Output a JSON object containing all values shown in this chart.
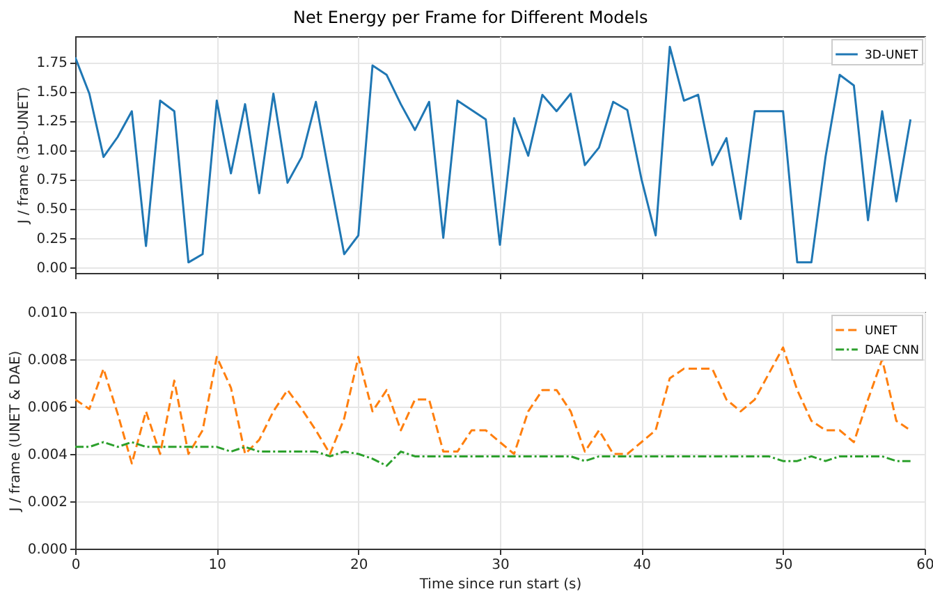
{
  "chart_data": [
    {
      "type": "line",
      "title": "Net Energy per Frame for Different Models",
      "ylabel": "J / frame  (3D-UNET)",
      "x": [
        0,
        1,
        2,
        3,
        4,
        5,
        6,
        7,
        8,
        9,
        10,
        11,
        12,
        13,
        14,
        15,
        16,
        17,
        18,
        19,
        20,
        21,
        22,
        23,
        24,
        25,
        26,
        27,
        28,
        29,
        30,
        31,
        32,
        33,
        34,
        35,
        36,
        37,
        38,
        39,
        40,
        41,
        42,
        43,
        44,
        45,
        46,
        47,
        48,
        49,
        50,
        51,
        52,
        53,
        54,
        55,
        56,
        57,
        58,
        59
      ],
      "series": [
        {
          "name": "3D-UNET",
          "color": "#1f77b4",
          "line_style": "solid",
          "values": [
            1.79,
            1.48,
            0.94,
            1.11,
            1.33,
            0.18,
            1.42,
            1.33,
            0.04,
            0.11,
            1.42,
            0.8,
            1.39,
            0.63,
            1.48,
            0.72,
            0.94,
            1.41,
            0.75,
            0.11,
            0.27,
            1.72,
            1.64,
            1.39,
            1.17,
            1.41,
            0.25,
            1.42,
            1.34,
            1.26,
            0.19,
            1.27,
            0.95,
            1.47,
            1.33,
            1.48,
            0.87,
            1.02,
            1.41,
            1.34,
            0.75,
            0.27,
            1.88,
            1.42,
            1.47,
            0.87,
            1.1,
            0.41,
            1.33,
            1.33,
            1.33,
            0.04,
            0.04,
            0.94,
            1.64,
            1.55,
            0.4,
            1.33,
            0.56,
            1.26
          ]
        }
      ],
      "xlim": [
        0,
        60
      ],
      "xticks": [
        0,
        10,
        20,
        30,
        40,
        50,
        60
      ],
      "ylim": [
        -0.05,
        1.97
      ],
      "yticks": [
        {
          "value": 0,
          "label": "0.00"
        },
        {
          "value": 0.25,
          "label": "0.25"
        },
        {
          "value": 0.5,
          "label": "0.50"
        },
        {
          "value": 0.75,
          "label": "0.75"
        },
        {
          "value": 1,
          "label": "1.00"
        },
        {
          "value": 1.25,
          "label": "1.25"
        },
        {
          "value": 1.5,
          "label": "1.50"
        },
        {
          "value": 1.75,
          "label": "1.75"
        }
      ],
      "grid": true,
      "legend": "top right",
      "tick_labels": "y"
    },
    {
      "type": "line",
      "xlabel": "Time since run start (s)",
      "ylabel": "J / frame  (UNET & DAE)",
      "x": [
        0,
        1,
        2,
        3,
        4,
        5,
        6,
        7,
        8,
        9,
        10,
        11,
        12,
        13,
        14,
        15,
        16,
        17,
        18,
        19,
        20,
        21,
        22,
        23,
        24,
        25,
        26,
        27,
        28,
        29,
        30,
        31,
        32,
        33,
        34,
        35,
        36,
        37,
        38,
        39,
        40,
        41,
        42,
        43,
        44,
        45,
        46,
        47,
        48,
        49,
        50,
        51,
        52,
        53,
        54,
        55,
        56,
        57,
        58,
        59
      ],
      "series": [
        {
          "name": "UNET",
          "color": "#ff7f0e",
          "line_style": "dashed",
          "values": [
            0.0063,
            0.0059,
            0.0076,
            0.0057,
            0.0036,
            0.0058,
            0.004,
            0.0071,
            0.004,
            0.005,
            0.0081,
            0.0068,
            0.004,
            0.0046,
            0.0058,
            0.0067,
            0.0059,
            0.005,
            0.004,
            0.0055,
            0.0081,
            0.0058,
            0.0067,
            0.005,
            0.0063,
            0.0063,
            0.0041,
            0.0041,
            0.005,
            0.005,
            0.0045,
            0.004,
            0.0058,
            0.0067,
            0.0067,
            0.0058,
            0.0041,
            0.005,
            0.004,
            0.004,
            0.0045,
            0.005,
            0.0072,
            0.0076,
            0.0076,
            0.0076,
            0.0063,
            0.0058,
            0.0063,
            0.0074,
            0.0085,
            0.0067,
            0.0054,
            0.005,
            0.005,
            0.0045,
            0.0063,
            0.008,
            0.0054,
            0.005
          ]
        },
        {
          "name": "DAE CNN",
          "color": "#2ca02c",
          "line_style": "dashdot",
          "values": [
            0.0043,
            0.0043,
            0.0045,
            0.0043,
            0.0045,
            0.0043,
            0.0043,
            0.0043,
            0.0043,
            0.0043,
            0.0043,
            0.0041,
            0.0043,
            0.0041,
            0.0041,
            0.0041,
            0.0041,
            0.0041,
            0.0039,
            0.0041,
            0.004,
            0.0038,
            0.0035,
            0.0041,
            0.0039,
            0.0039,
            0.0039,
            0.0039,
            0.0039,
            0.0039,
            0.0039,
            0.0039,
            0.0039,
            0.0039,
            0.0039,
            0.0039,
            0.0037,
            0.0039,
            0.0039,
            0.0039,
            0.0039,
            0.0039,
            0.0039,
            0.0039,
            0.0039,
            0.0039,
            0.0039,
            0.0039,
            0.0039,
            0.0039,
            0.0037,
            0.0037,
            0.0039,
            0.0037,
            0.0039,
            0.0039,
            0.0039,
            0.0039,
            0.0037,
            0.0037
          ]
        }
      ],
      "xlim": [
        0,
        60
      ],
      "xticks": [
        0,
        10,
        20,
        30,
        40,
        50,
        60
      ],
      "ylim": [
        0,
        0.01
      ],
      "yticks": [
        {
          "value": 0,
          "label": "0.000"
        },
        {
          "value": 0.002,
          "label": "0.002"
        },
        {
          "value": 0.004,
          "label": "0.004"
        },
        {
          "value": 0.006,
          "label": "0.006"
        },
        {
          "value": 0.008,
          "label": "0.008"
        },
        {
          "value": 0.01,
          "label": "0.010"
        }
      ],
      "grid": true,
      "legend": "top right"
    }
  ]
}
